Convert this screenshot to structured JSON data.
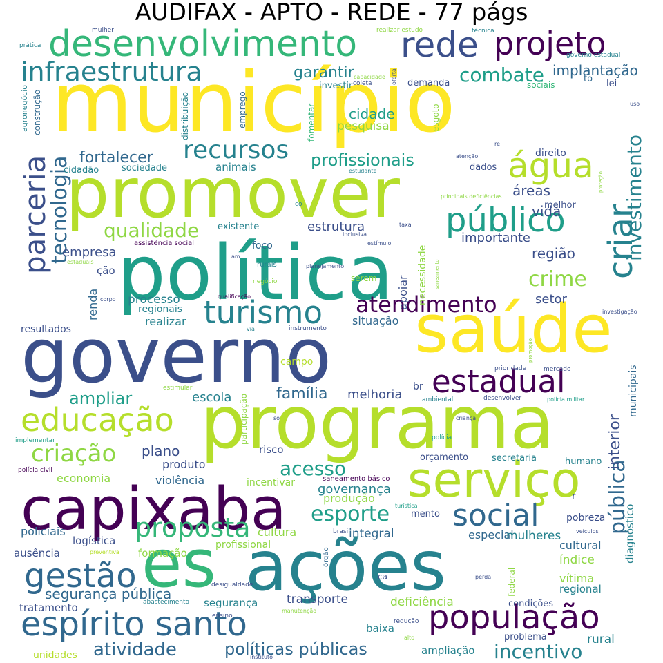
{
  "title": "AUDIFAX - APTO - REDE - 77 págs",
  "words": {
    "municipio": "município",
    "governo": "governo",
    "promover": "promover",
    "politica": "política",
    "programa": "programa",
    "acoes": "ações",
    "es": "es",
    "saude": "saúde",
    "capixaba": "capixaba",
    "servico": "serviço",
    "desenvolvimento": "desenvolvimento",
    "rede": "rede",
    "projeto": "projeto",
    "infraestrutura": "infraestrutura",
    "estadual": "estadual",
    "turismo": "turismo",
    "agua": "água",
    "publico": "público",
    "educacao": "educação",
    "espirito_santo": "espírito santo",
    "populacao": "população",
    "gestao": "gestão",
    "social": "social",
    "parceria": "parceria",
    "criar": "criar",
    "proposta": "proposta",
    "recursos": "recursos",
    "tecnologia": "tecnologia",
    "atendimento": "atendimento",
    "criacao": "criação",
    "esporte": "esporte",
    "investimento": "investimento",
    "publica": "pública",
    "combate": "combate",
    "garantir": "garantir",
    "implantacao": "implantação",
    "fortalecer": "fortalecer",
    "qualidade": "qualidade",
    "profissionais": "profissionais",
    "ampliar": "ampliar",
    "acesso": "acesso",
    "crime": "crime",
    "incentivo": "incentivo",
    "atividade": "atividade",
    "politicas_publicas": "políticas públicas",
    "seguranca_publica": "segurança pública",
    "interior": "interior",
    "familia": "família",
    "cidade": "cidade",
    "pesquisa": "pesquisa",
    "regiao": "região",
    "vida": "vida",
    "areas": "áreas",
    "importante": "importante",
    "estrutura": "estrutura",
    "empresa": "empresa",
    "processo": "processo",
    "regionais": "regionais",
    "realizar": "realizar",
    "setor": "setor",
    "situacao": "situação",
    "escola": "escola",
    "melhoria": "melhoria",
    "plano": "plano",
    "produto": "produto",
    "economia": "economia",
    "violencia": "violência",
    "governanca": "governança",
    "producao": "produção",
    "cultura": "cultura",
    "integral": "integral",
    "especial": "especial",
    "mulheres": "mulheres",
    "indice": "índice",
    "vitima": "vítima",
    "regional": "regional",
    "cultural": "cultural",
    "diagnostico": "diagnóstico",
    "municipais": "municipais",
    "rural": "rural",
    "transporte": "transporte",
    "deficiencia": "deficiência",
    "seguranca": "segurança",
    "baixa": "baixa",
    "ampliacao": "ampliação",
    "tratamento": "tratamento",
    "unidades": "unidades",
    "policiais": "policiais",
    "logistica": "logística",
    "ausencia": "ausência",
    "formacao": "formação",
    "profissional": "profissional",
    "renda": "renda",
    "apoiar": "apoiar",
    "necessidade": "necessidade",
    "foco": "foco",
    "existente": "existente",
    "animais": "animais",
    "sociedade": "sociedade",
    "cidadao": "cidadão",
    "dados": "dados",
    "direito": "direito",
    "melhor": "melhor",
    "demanda": "demanda",
    "investir": "investir",
    "lei": "lei",
    "sociais": "sociais",
    "to": "to",
    "emprego": "emprego",
    "distribuicao": "distribuição",
    "construcao": "construção",
    "agronegocio": "agronegócio",
    "fomentar": "fomentar",
    "esgoto": "esgoto",
    "resultados": "resultados",
    "campo": "campo",
    "risco": "risco",
    "incentivar": "incentivar",
    "orcamento": "orçamento",
    "secretaria": "secretaria",
    "humano": "humano",
    "mento": "mento",
    "pobreza": "pobreza",
    "br": "br",
    "r": "r",
    "cao": "ção",
    "participacao": "participação",
    "orgao": "órgão",
    "federal": "federal",
    "ca": "ca",
    "serem": "serem",
    "condicoes": "condições",
    "problema": "problema",
    "mulher": "mulher",
    "pratica": "prática",
    "realizar_estudo": "realizar estudo",
    "tecnica": "técnica",
    "governo_estadual": "governo estadual",
    "capacidade": "capacidade",
    "coleta": "coleta",
    "oferta": "oferta",
    "uso": "uso",
    "atencao": "atenção",
    "re": "re",
    "estudante": "estudante",
    "protecao": "proteção",
    "principais_deficiencias": "principais deficiências",
    "co": "co",
    "taxa": "taxa",
    "inclusiva": "inclusiva",
    "estimulo": "estímulo",
    "assistencia_social": "assistência social",
    "am": "am",
    "estaduais": "estaduais",
    "rurais": "rurais",
    "planejamento": "planejamento",
    "saneamento": "saneamento",
    "negocio": "negócio",
    "corpo": "corpo",
    "qualificacao": "qualificação",
    "investigacao": "investigação",
    "via": "via",
    "instrumento": "instrumento",
    "promocao": "promoção",
    "prioridade": "prioridade",
    "mercado": "mercado",
    "estimular": "estimular",
    "ambiental": "ambiental",
    "desenvolver": "desenvolver",
    "policia_militar": "polícia militar",
    "so": "so",
    "crianca": "criança",
    "implementar": "implementar",
    "policia": "polícia",
    "policia_civil": "polícia civil",
    "saneamento_basico": "saneamento básico",
    "turistica": "turística",
    "brasil": "brasil",
    "veiculos": "veículos",
    "preventiva": "preventiva",
    "perda": "perda",
    "desigualdade": "desigualdade",
    "abastecimento": "abastecimento",
    "ensino": "ensino",
    "manutencao": "manutenção",
    "reducao": "redução",
    "alto": "alto",
    "instituto": "instituto"
  },
  "colors": {
    "purple_dark": "#440154",
    "navy": "#3b4f8a",
    "blue": "#31688e",
    "teal": "#26828e",
    "green_teal": "#1f9e89",
    "green": "#35b779",
    "lime": "#8fd744",
    "yellow_green": "#b5de2b",
    "yellow": "#fde725"
  }
}
